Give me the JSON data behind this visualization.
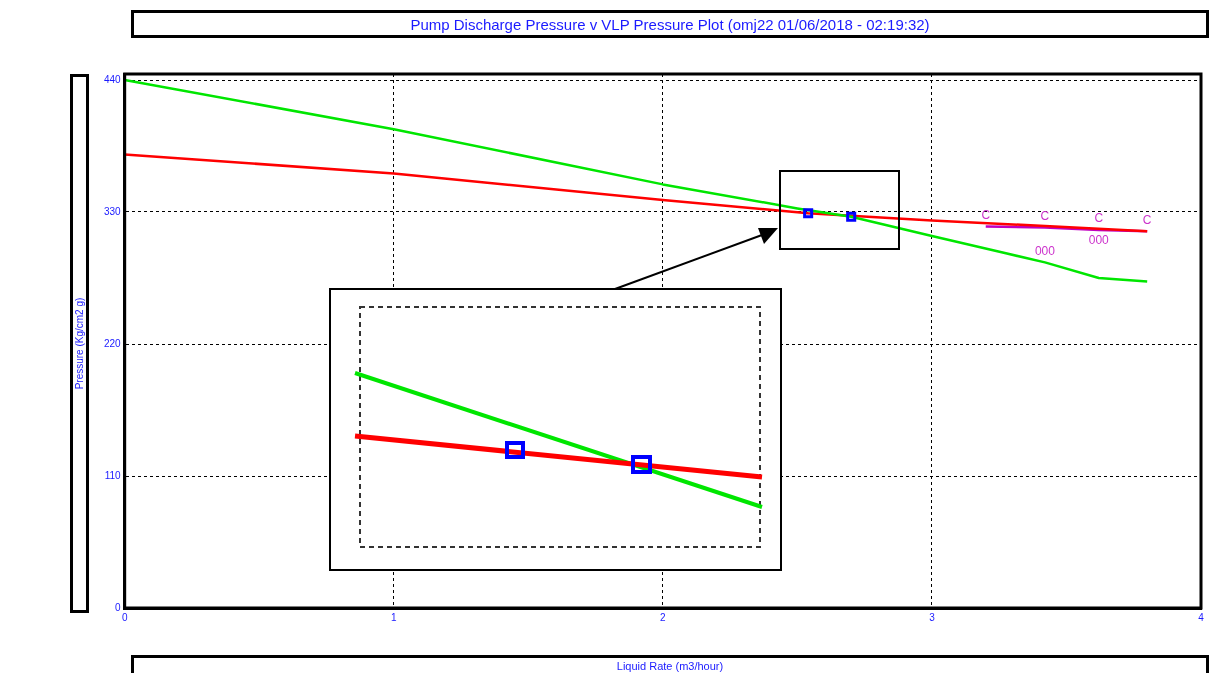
{
  "chart_data": {
    "type": "line",
    "title": "Pump Discharge Pressure v VLP Pressure Plot (omj22 01/06/2018 - 02:19:32)",
    "xlabel": "Liquid Rate  (m3/hour)",
    "ylabel": "Pressure  (Kg/cm2 g)",
    "xlim": [
      0,
      4
    ],
    "xticks": [
      0,
      1,
      2,
      3,
      4
    ],
    "ylim": [
      0,
      445
    ],
    "yticks": [
      0,
      110,
      220,
      330,
      440
    ],
    "grid": true,
    "legend": false,
    "line_style": "solid",
    "series": [
      {
        "type": "line",
        "color": "#00e600",
        "x": [
          0,
          1,
          2,
          2.5,
          2.7,
          3,
          3.42,
          3.62,
          3.8
        ],
        "values": [
          440,
          399,
          353,
          333,
          326,
          310,
          288,
          275,
          272
        ]
      },
      {
        "type": "line",
        "color": "#ff0000",
        "x": [
          0,
          1,
          2,
          2.54,
          3,
          3.8
        ],
        "values": [
          378,
          362,
          340,
          329,
          323,
          314
        ]
      },
      {
        "type": "line",
        "color": "#c000c0",
        "x": [
          3.2,
          3.42,
          3.62,
          3.8
        ],
        "values": [
          318,
          317,
          315,
          314
        ]
      },
      {
        "type": "scatter",
        "color": "#0000ff",
        "marker": "square",
        "x": [
          2.54,
          2.7
        ],
        "values": [
          329,
          326
        ]
      }
    ],
    "annotations": [
      {
        "text": "C",
        "x": 3.2,
        "y": 318
      },
      {
        "text": "C",
        "x": 3.42,
        "y": 317
      },
      {
        "text": "C",
        "x": 3.62,
        "y": 315
      },
      {
        "text": "C",
        "x": 3.8,
        "y": 314
      },
      {
        "text": "000",
        "x": 3.62,
        "y": 315
      },
      {
        "text": "000",
        "x": 3.42,
        "y": 288
      }
    ]
  }
}
